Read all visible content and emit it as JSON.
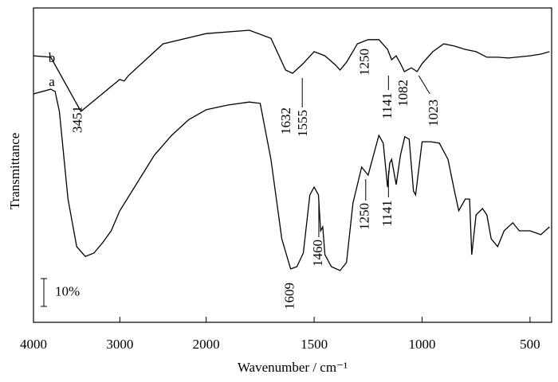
{
  "chart_data": {
    "type": "line",
    "xlabel": "Wavenumber / cm⁻¹",
    "ylabel": "Transmittance",
    "xlim": [
      4000,
      400
    ],
    "xticks": [
      4000,
      3000,
      2000,
      1500,
      1000,
      500
    ],
    "xscale": {
      "break": 2000,
      "factor": 2.5
    },
    "ylim": [
      0,
      113
    ],
    "scale_bar": {
      "value": 10,
      "label": "10%"
    },
    "color": "#000000",
    "series": [
      {
        "name": "b",
        "x": [
          4000,
          3800,
          3451,
          3000,
          2950,
          2900,
          2500,
          2000,
          1800,
          1700,
          1632,
          1600,
          1555,
          1500,
          1450,
          1400,
          1380,
          1350,
          1300,
          1250,
          1200,
          1160,
          1141,
          1120,
          1100,
          1082,
          1050,
          1023,
          1000,
          950,
          900,
          850,
          800,
          750,
          700,
          650,
          600,
          500,
          450,
          410
        ],
        "values": [
          95.8,
          95.3,
          75.8,
          87.3,
          86.7,
          88.7,
          100.1,
          103.8,
          105.0,
          102.1,
          90.7,
          89.5,
          92.7,
          97.3,
          95.8,
          92.4,
          90.7,
          93.5,
          100.1,
          101.6,
          101.6,
          98.1,
          94.4,
          95.8,
          93.0,
          90.1,
          91.5,
          90.1,
          93.0,
          97.3,
          100.1,
          99.3,
          98.1,
          97.3,
          95.3,
          95.3,
          95.0,
          95.8,
          96.4,
          97.3
        ]
      },
      {
        "name": "a",
        "x": [
          4000,
          3800,
          3750,
          3700,
          3600,
          3500,
          3400,
          3300,
          3200,
          3100,
          3000,
          2800,
          2600,
          2400,
          2200,
          2000,
          1900,
          1800,
          1750,
          1700,
          1650,
          1609,
          1580,
          1550,
          1520,
          1500,
          1480,
          1470,
          1460,
          1450,
          1420,
          1380,
          1350,
          1320,
          1280,
          1250,
          1220,
          1200,
          1180,
          1160,
          1150,
          1141,
          1120,
          1100,
          1080,
          1060,
          1040,
          1030,
          1000,
          960,
          920,
          880,
          850,
          830,
          800,
          780,
          770,
          750,
          720,
          700,
          680,
          650,
          620,
          580,
          550,
          500,
          450,
          410
        ],
        "values": [
          82.1,
          83.8,
          83.0,
          75.8,
          44.3,
          27.2,
          23.7,
          24.9,
          28.6,
          32.9,
          40.1,
          50.1,
          60.1,
          67.2,
          72.9,
          76.4,
          78.1,
          79.2,
          78.7,
          58.6,
          30.0,
          19.2,
          20.0,
          24.9,
          45.8,
          48.6,
          45.8,
          32.9,
          34.3,
          24.3,
          20.0,
          18.6,
          21.5,
          42.9,
          55.8,
          52.9,
          61.5,
          67.2,
          64.4,
          48.6,
          57.2,
          58.6,
          49.5,
          60.1,
          66.7,
          65.8,
          47.2,
          45.8,
          64.9,
          64.9,
          64.4,
          58.6,
          47.2,
          40.1,
          44.3,
          44.3,
          24.3,
          38.6,
          40.9,
          38.6,
          30.0,
          27.2,
          32.9,
          35.8,
          32.9,
          32.9,
          31.5,
          34.3
        ]
      }
    ],
    "annotations": [
      {
        "text": "3451",
        "x": 3451
      },
      {
        "text": "1632",
        "x": 1632
      },
      {
        "text": "1555",
        "x": 1555
      },
      {
        "text": "1250",
        "x": 1250
      },
      {
        "text": "1141",
        "x": 1141
      },
      {
        "text": "1082",
        "x": 1082
      },
      {
        "text": "1023",
        "x": 1023
      },
      {
        "text": "1609",
        "x": 1609
      },
      {
        "text": "1460",
        "x": 1460
      },
      {
        "text": "1250",
        "x": 1250
      },
      {
        "text": "1141",
        "x": 1141
      }
    ]
  }
}
